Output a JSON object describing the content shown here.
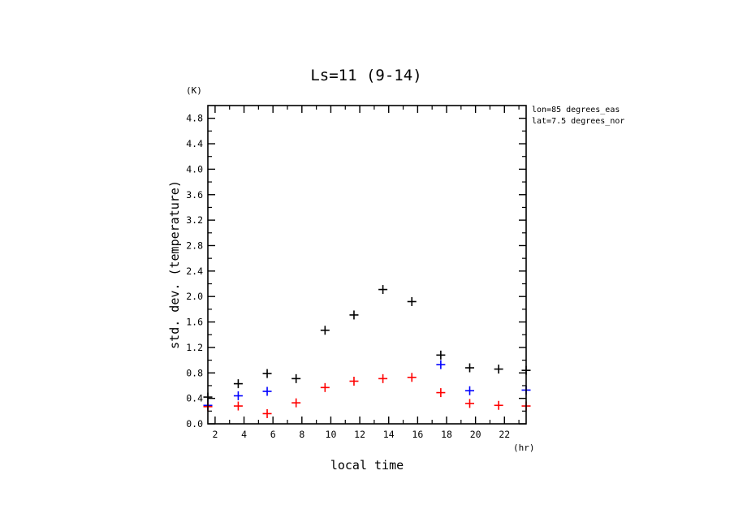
{
  "chart_data": {
    "type": "scatter",
    "title": "Ls=11 (9-14)",
    "xlabel": "local time",
    "ylabel": "std. dev. (temperature)",
    "x_unit": "(hr)",
    "y_unit": "(K)",
    "annotations": [
      "lon=85 degrees_eas",
      "lat=7.5 degrees_nor"
    ],
    "xlim": [
      1.5,
      23.5
    ],
    "ylim": [
      0.0,
      5.0
    ],
    "x_ticks": [
      2,
      4,
      6,
      8,
      10,
      12,
      14,
      16,
      18,
      20,
      22
    ],
    "y_ticks": [
      0.0,
      0.4,
      0.8,
      1.2,
      1.6,
      2.0,
      2.4,
      2.8,
      3.2,
      3.6,
      4.0,
      4.4,
      4.8
    ],
    "x_tick_labels": [
      "2",
      "4",
      "6",
      "8",
      "10",
      "12",
      "14",
      "16",
      "18",
      "20",
      "22"
    ],
    "y_tick_labels": [
      "0.0",
      "0.4",
      "0.8",
      "1.2",
      "1.6",
      "2.0",
      "2.4",
      "2.8",
      "3.2",
      "3.6",
      "4.0",
      "4.4",
      "4.8"
    ],
    "marker": "+",
    "series": [
      {
        "color": "#000000",
        "points": [
          [
            1.5,
            0.42
          ],
          [
            3.6,
            0.63
          ],
          [
            5.6,
            0.79
          ],
          [
            7.6,
            0.71
          ],
          [
            9.6,
            1.47
          ],
          [
            11.6,
            1.71
          ],
          [
            13.6,
            2.11
          ],
          [
            15.6,
            1.92
          ],
          [
            17.6,
            1.08
          ],
          [
            19.6,
            0.88
          ],
          [
            21.6,
            0.86
          ],
          [
            23.5,
            0.84
          ]
        ]
      },
      {
        "color": "#0000ff",
        "points": [
          [
            1.5,
            0.29
          ],
          [
            3.6,
            0.44
          ],
          [
            5.6,
            0.51
          ],
          [
            17.6,
            0.93
          ],
          [
            19.6,
            0.52
          ],
          [
            23.5,
            0.53
          ]
        ]
      },
      {
        "color": "#ff0000",
        "points": [
          [
            1.5,
            0.27
          ],
          [
            3.6,
            0.28
          ],
          [
            5.6,
            0.16
          ],
          [
            7.6,
            0.33
          ],
          [
            9.6,
            0.57
          ],
          [
            11.6,
            0.67
          ],
          [
            13.6,
            0.71
          ],
          [
            15.6,
            0.73
          ],
          [
            17.6,
            0.49
          ],
          [
            19.6,
            0.32
          ],
          [
            21.6,
            0.29
          ],
          [
            23.5,
            0.28
          ]
        ]
      }
    ]
  }
}
